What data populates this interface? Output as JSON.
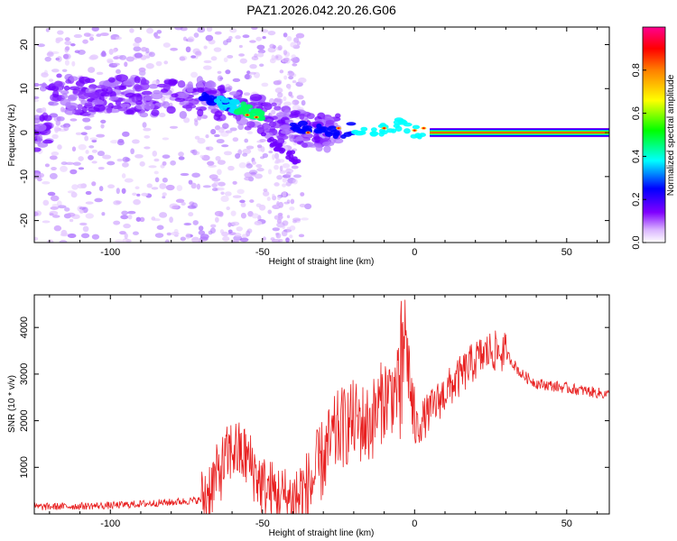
{
  "title": "PAZ1.2026.042.20.26.G06",
  "chart_data": [
    {
      "type": "heatmap",
      "xlabel": "Height of straight line (km)",
      "ylabel": "Frequency (Hz)",
      "xlim": [
        -125,
        64
      ],
      "ylim": [
        -25,
        24
      ],
      "x_ticks": [
        -100,
        -50,
        0,
        50
      ],
      "y_ticks": [
        -20,
        -10,
        0,
        10,
        20
      ],
      "colorbar": {
        "label": "Normalized spectral amplitude",
        "range": [
          0,
          1
        ],
        "ticks": [
          "0.0",
          "0.2",
          "0.4",
          "0.6",
          "0.8"
        ],
        "colors": [
          "#ffffff",
          "#8000ff",
          "#0000ff",
          "#00ffff",
          "#00ff00",
          "#ffff00",
          "#ff0000",
          "#ff00aa"
        ]
      },
      "ridge": {
        "x": [
          -120,
          -110,
          -100,
          -90,
          -80,
          -70,
          -60,
          -50,
          -45,
          -40,
          -35,
          -30,
          -25,
          -20,
          -15,
          -10,
          -5,
          0,
          5,
          10,
          20,
          30,
          40,
          50,
          60,
          64
        ],
        "y": [
          10,
          8,
          9,
          8,
          8,
          8,
          6,
          4,
          2,
          1,
          1,
          0,
          0,
          1,
          0,
          1,
          2,
          0,
          1,
          0,
          0,
          0,
          0,
          0,
          0,
          0
        ]
      }
    },
    {
      "type": "line",
      "xlabel": "Height of straight line (km)",
      "ylabel": "SNR (10 * v/v)",
      "xlim": [
        -125,
        64
      ],
      "ylim": [
        0,
        4700
      ],
      "x_ticks": [
        -100,
        -50,
        0,
        50
      ],
      "y_ticks": [
        1000,
        2000,
        3000,
        4000
      ],
      "series": [
        {
          "name": "SNR",
          "color": "#e82020",
          "x": [
            -125,
            -100,
            -80,
            -70,
            -65,
            -60,
            -55,
            -50,
            -45,
            -40,
            -35,
            -30,
            -25,
            -20,
            -15,
            -10,
            -5,
            -4,
            0,
            5,
            10,
            20,
            25,
            30,
            35,
            40,
            50,
            60,
            64
          ],
          "y": [
            150,
            180,
            250,
            300,
            800,
            1400,
            1200,
            600,
            400,
            300,
            500,
            1200,
            1800,
            2000,
            1900,
            2500,
            2700,
            4500,
            1800,
            2200,
            2600,
            3300,
            3500,
            3450,
            3000,
            2800,
            2700,
            2600,
            2550
          ]
        }
      ]
    }
  ]
}
